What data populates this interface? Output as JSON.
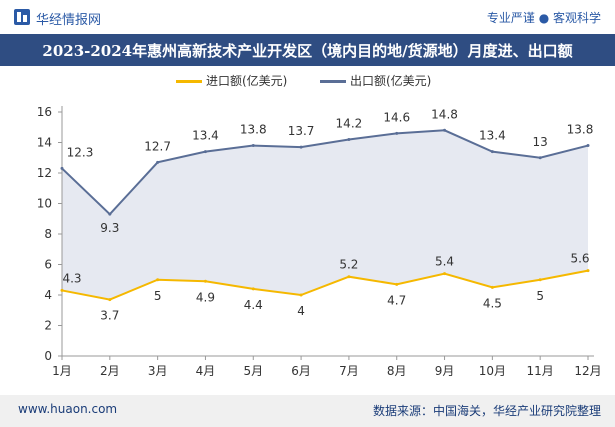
{
  "header": {
    "brand": "华经情报网",
    "tagline": "专业严谨 ● 客观科学"
  },
  "title": "2023-2024年惠州高新技术产业开发区（境内目的地/货源地）月度进、出口额",
  "footer": {
    "url": "www.huaon.com",
    "source": "数据来源：中国海关，华经产业研究院整理"
  },
  "colors": {
    "import": "#f5b800",
    "export": "#5a6e96",
    "area": "#e6e9f1",
    "title_bg": "#2f4d82",
    "footer_bg": "#f0f0f0"
  },
  "chart_data": {
    "type": "line",
    "categories": [
      "1月",
      "2月",
      "3月",
      "4月",
      "5月",
      "6月",
      "7月",
      "8月",
      "9月",
      "10月",
      "11月",
      "12月"
    ],
    "series": [
      {
        "name": "进口额(亿美元)",
        "values": [
          4.3,
          3.7,
          5,
          4.9,
          4.4,
          4,
          5.2,
          4.7,
          5.4,
          4.5,
          5,
          5.6
        ]
      },
      {
        "name": "出口额(亿美元)",
        "values": [
          12.3,
          9.3,
          12.7,
          13.4,
          13.8,
          13.7,
          14.2,
          14.6,
          14.8,
          13.4,
          13,
          13.8
        ]
      }
    ],
    "ylim": [
      0,
      16
    ],
    "yticks": [
      0,
      2,
      4,
      6,
      8,
      10,
      12,
      14,
      16
    ],
    "xlabel": "",
    "ylabel": "",
    "grid": false,
    "legend": "top-center",
    "fill_between": true
  }
}
